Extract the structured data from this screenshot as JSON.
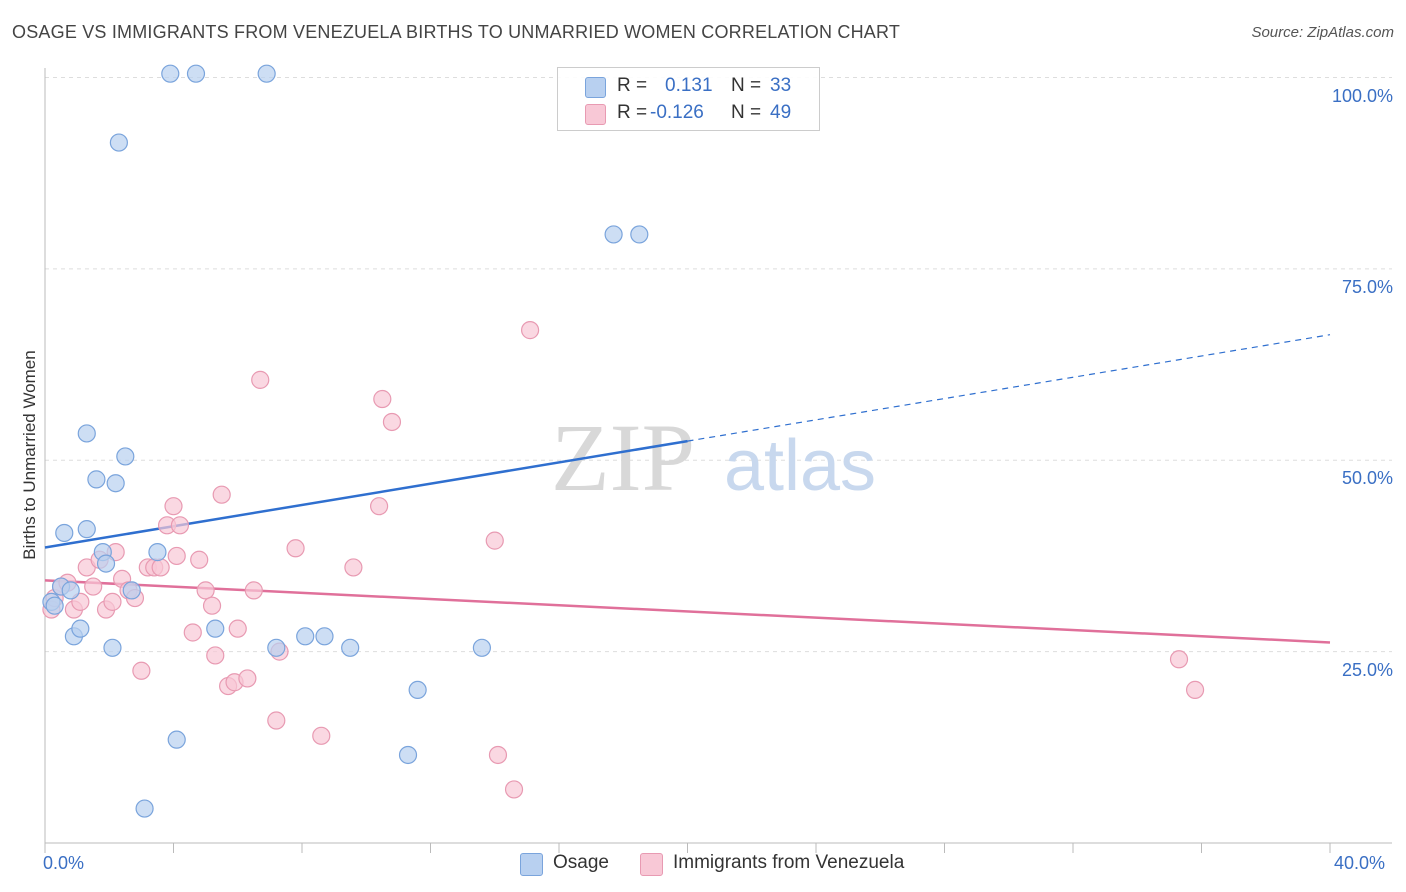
{
  "header": {
    "title": "OSAGE VS IMMIGRANTS FROM VENEZUELA BIRTHS TO UNMARRIED WOMEN CORRELATION CHART",
    "source": "Source: ZipAtlas.com"
  },
  "legend": {
    "rows": [
      {
        "r_label": "R =",
        "r_value": "0.131",
        "n_label": "N =",
        "n_value": "33"
      },
      {
        "r_label": "R =",
        "r_value": "-0.126",
        "n_label": "N =",
        "n_value": "49"
      }
    ]
  },
  "bottom_legend": {
    "osage": "Osage",
    "venezuela": "Immigrants from Venezuela"
  },
  "watermark": {
    "zip": "ZIP",
    "atlas": "atlas"
  },
  "colors": {
    "osage_fill": "#b8d0f0",
    "osage_stroke": "#7aa4dc",
    "osage_line": "#2f6fcf",
    "venezuela_fill": "#f8c8d6",
    "venezuela_stroke": "#e89ab2",
    "venezuela_line": "#e0709a",
    "axis_text": "#3a6fc4"
  },
  "chart_data": {
    "type": "scatter",
    "title": "OSAGE VS IMMIGRANTS FROM VENEZUELA BIRTHS TO UNMARRIED WOMEN CORRELATION CHART",
    "xlabel": "",
    "ylabel": "Births to Unmarried Women",
    "xlim": [
      0,
      40
    ],
    "ylim": [
      0,
      100
    ],
    "x_tick_labels": [
      "0.0%",
      "40.0%"
    ],
    "y_tick_labels": [
      "100.0%",
      "75.0%",
      "50.0%",
      "25.0%"
    ],
    "y_ticks": [
      100,
      75,
      50,
      25
    ],
    "grid": true,
    "legend_position": "top-center",
    "series": [
      {
        "name": "Osage",
        "r": 0.131,
        "n": 33,
        "points": [
          [
            0.2,
            31.5
          ],
          [
            0.3,
            31.0
          ],
          [
            0.5,
            33.5
          ],
          [
            0.8,
            33.0
          ],
          [
            0.9,
            27.0
          ],
          [
            1.1,
            28.0
          ],
          [
            0.6,
            40.5
          ],
          [
            1.3,
            41.0
          ],
          [
            1.3,
            53.5
          ],
          [
            1.6,
            47.5
          ],
          [
            1.8,
            38.0
          ],
          [
            1.9,
            36.5
          ],
          [
            2.1,
            25.5
          ],
          [
            2.2,
            47.0
          ],
          [
            2.5,
            50.5
          ],
          [
            2.3,
            91.5
          ],
          [
            2.7,
            33.0
          ],
          [
            3.1,
            4.5
          ],
          [
            3.5,
            38.0
          ],
          [
            3.9,
            100.5
          ],
          [
            4.1,
            13.5
          ],
          [
            4.7,
            100.5
          ],
          [
            5.3,
            28.0
          ],
          [
            6.9,
            100.5
          ],
          [
            7.2,
            25.5
          ],
          [
            8.1,
            27.0
          ],
          [
            8.7,
            27.0
          ],
          [
            9.5,
            25.5
          ],
          [
            11.6,
            20.0
          ],
          [
            11.3,
            11.5
          ],
          [
            13.6,
            25.5
          ],
          [
            17.7,
            79.5
          ],
          [
            18.5,
            79.5
          ]
        ]
      },
      {
        "name": "Immigrants from Venezuela",
        "r": -0.126,
        "n": 49,
        "points": [
          [
            0.2,
            30.5
          ],
          [
            0.3,
            32.0
          ],
          [
            0.5,
            33.5
          ],
          [
            0.7,
            34.0
          ],
          [
            0.9,
            30.5
          ],
          [
            1.1,
            31.5
          ],
          [
            1.3,
            36.0
          ],
          [
            1.5,
            33.5
          ],
          [
            1.7,
            37.0
          ],
          [
            1.9,
            30.5
          ],
          [
            2.1,
            31.5
          ],
          [
            2.2,
            38.0
          ],
          [
            2.4,
            34.5
          ],
          [
            2.6,
            33.0
          ],
          [
            2.8,
            32.0
          ],
          [
            3.0,
            22.5
          ],
          [
            3.2,
            36.0
          ],
          [
            3.4,
            36.0
          ],
          [
            3.6,
            36.0
          ],
          [
            3.8,
            41.5
          ],
          [
            4.0,
            44.0
          ],
          [
            4.2,
            41.5
          ],
          [
            4.1,
            37.5
          ],
          [
            4.6,
            27.5
          ],
          [
            4.8,
            37.0
          ],
          [
            5.0,
            33.0
          ],
          [
            5.2,
            31.0
          ],
          [
            5.3,
            24.5
          ],
          [
            5.5,
            45.5
          ],
          [
            5.7,
            20.5
          ],
          [
            5.9,
            21.0
          ],
          [
            6.0,
            28.0
          ],
          [
            6.3,
            21.5
          ],
          [
            6.5,
            33.0
          ],
          [
            6.7,
            60.5
          ],
          [
            7.2,
            16.0
          ],
          [
            7.3,
            25.0
          ],
          [
            7.8,
            38.5
          ],
          [
            8.6,
            14.0
          ],
          [
            9.6,
            36.0
          ],
          [
            10.4,
            44.0
          ],
          [
            10.5,
            58.0
          ],
          [
            10.8,
            55.0
          ],
          [
            14.0,
            39.5
          ],
          [
            14.1,
            11.5
          ],
          [
            14.6,
            7.0
          ],
          [
            15.1,
            67.0
          ],
          [
            35.3,
            24.0
          ],
          [
            35.8,
            20.0
          ]
        ]
      }
    ],
    "trend_lines": [
      {
        "series": "Osage",
        "x_solid": [
          0,
          20
        ],
        "y_solid": [
          38.6,
          52.5
        ],
        "x_dashed": [
          20,
          40
        ],
        "y_dashed": [
          52.5,
          66.4
        ]
      },
      {
        "series": "Immigrants from Venezuela",
        "x": [
          0,
          40
        ],
        "y": [
          34.3,
          26.2
        ]
      }
    ]
  }
}
